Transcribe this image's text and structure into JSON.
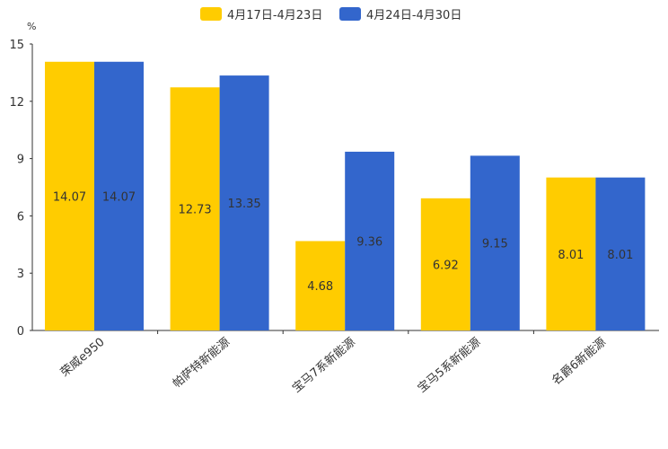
{
  "chart_data": {
    "type": "bar",
    "title": "",
    "xlabel": "",
    "ylabel": "%",
    "ylim": [
      0,
      15
    ],
    "yticks": [
      0,
      3,
      6,
      9,
      12,
      15
    ],
    "grid": false,
    "legend_position": "top-center",
    "categories": [
      "荣威e950",
      "帕萨特新能源",
      "宝马7系新能源",
      "宝马5系新能源",
      "名爵6新能源"
    ],
    "series": [
      {
        "name": "4月17日-4月23日",
        "color": "#FFCC00",
        "values": [
          14.07,
          12.73,
          4.68,
          6.92,
          8.01
        ]
      },
      {
        "name": "4月24日-4月30日",
        "color": "#3366CC",
        "values": [
          14.07,
          13.35,
          9.36,
          9.15,
          8.01
        ]
      }
    ]
  }
}
